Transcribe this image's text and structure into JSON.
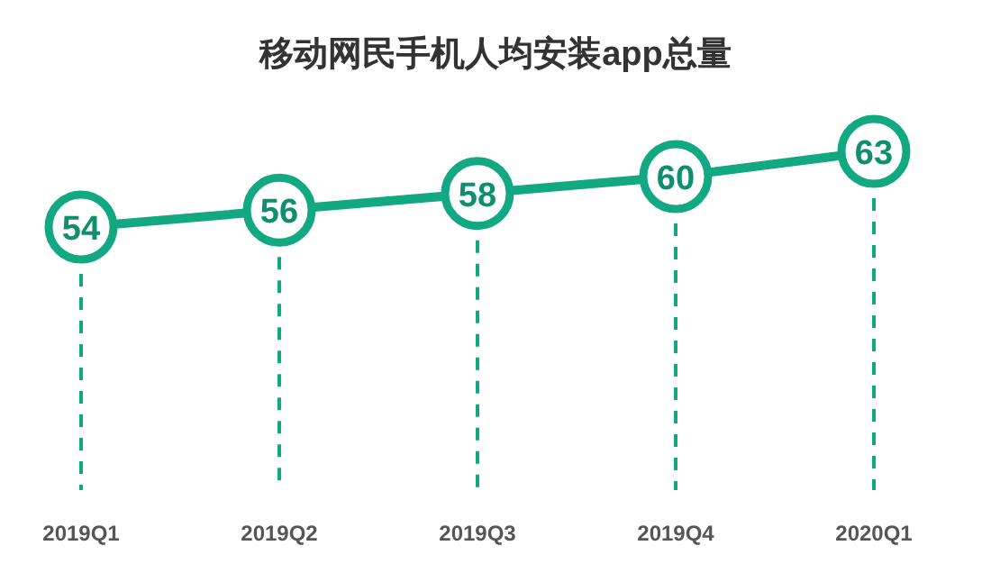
{
  "chart_data": {
    "type": "line",
    "title": "移动网民手机人均安装app总量",
    "categories": [
      "2019Q1",
      "2019Q2",
      "2019Q3",
      "2019Q4",
      "2020Q1"
    ],
    "series": [
      {
        "color": "#12a882",
        "values": [
          54,
          56,
          58,
          60,
          63
        ]
      }
    ],
    "data_labels": true,
    "marker": "circle",
    "grid": "x",
    "line_style": "solid"
  }
}
